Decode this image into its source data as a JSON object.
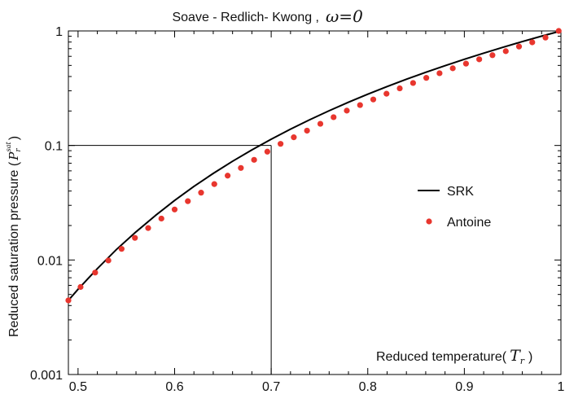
{
  "chart_data": {
    "type": "line",
    "title": "Soave - Redlich- Kwong ,",
    "title_symbol": "ω=0",
    "xlabel": "Reduced temperature(",
    "xlabel_symbol": "T",
    "xlabel_subscript": "r",
    "xlabel_close": ")",
    "ylabel": "Reduced saturation pressure (",
    "ylabel_symbol": "P",
    "ylabel_subscript": "r",
    "ylabel_superscript": "sat",
    "ylabel_close": ")",
    "xlim": [
      0.49,
      1.0
    ],
    "ylim": [
      0.001,
      1.0
    ],
    "yscale": "log",
    "grid": false,
    "legend_position": "right-middle",
    "x_ticks": [
      0.5,
      0.6,
      0.7,
      0.8,
      0.9,
      1.0
    ],
    "x_tick_labels": [
      "0.5",
      "0.6",
      "0.7",
      "0.8",
      "0.9",
      "1"
    ],
    "y_ticks": [
      0.001,
      0.01,
      0.1,
      1.0
    ],
    "y_tick_labels": [
      "0.001",
      "0.01",
      "0.1",
      "1"
    ],
    "reference_lines": {
      "x": 0.7,
      "y": 0.1
    },
    "series": [
      {
        "name": "SRK",
        "style": "line",
        "color": "#000000",
        "x": [
          0.49,
          0.5,
          0.52,
          0.54,
          0.56,
          0.58,
          0.6,
          0.62,
          0.64,
          0.66,
          0.68,
          0.7,
          0.72,
          0.74,
          0.76,
          0.78,
          0.8,
          0.82,
          0.84,
          0.86,
          0.88,
          0.9,
          0.92,
          0.94,
          0.96,
          0.98,
          1.0
        ],
        "y": [
          0.00444,
          0.00555,
          0.00841,
          0.0124,
          0.0176,
          0.0244,
          0.0331,
          0.0439,
          0.057,
          0.0728,
          0.0915,
          0.1134,
          0.1388,
          0.1679,
          0.201,
          0.2384,
          0.2802,
          0.3268,
          0.3784,
          0.4353,
          0.4976,
          0.5658,
          0.6399,
          0.7203,
          0.8073,
          0.901,
          1.0
        ]
      },
      {
        "name": "Antoine",
        "style": "markers",
        "color": "#e8362e",
        "x": [
          0.49,
          0.5026,
          0.5177,
          0.5314,
          0.5451,
          0.5589,
          0.5726,
          0.5863,
          0.6,
          0.6137,
          0.6274,
          0.6411,
          0.6549,
          0.6686,
          0.6823,
          0.696,
          0.7097,
          0.7234,
          0.7371,
          0.7509,
          0.7646,
          0.7783,
          0.792,
          0.8057,
          0.8194,
          0.8331,
          0.8469,
          0.8606,
          0.8743,
          0.888,
          0.9017,
          0.9154,
          0.9291,
          0.9429,
          0.9566,
          0.9703,
          0.984,
          0.9977
        ],
        "y": [
          0.00444,
          0.00581,
          0.00776,
          0.0099,
          0.0125,
          0.0156,
          0.019,
          0.023,
          0.0276,
          0.0326,
          0.0387,
          0.046,
          0.0545,
          0.0636,
          0.0749,
          0.0883,
          0.1033,
          0.1179,
          0.1347,
          0.1546,
          0.1765,
          0.2015,
          0.2253,
          0.2521,
          0.2829,
          0.3152,
          0.3512,
          0.3891,
          0.4273,
          0.4718,
          0.5182,
          0.5654,
          0.6142,
          0.6657,
          0.7309,
          0.7954,
          0.8751,
          1.0
        ]
      }
    ]
  }
}
